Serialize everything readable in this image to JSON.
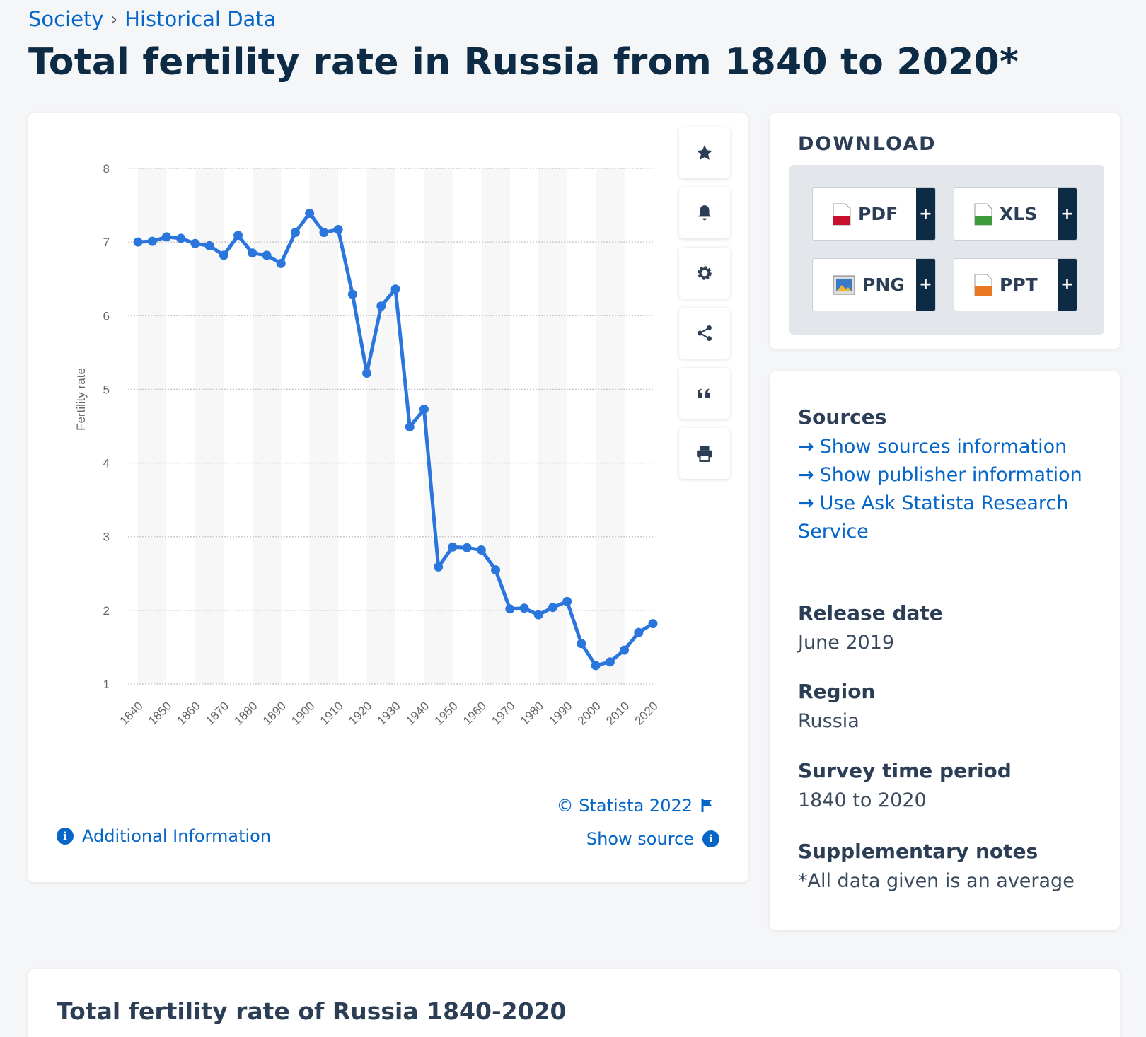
{
  "breadcrumb": {
    "items": [
      "Society",
      "Historical Data"
    ],
    "separator": "›"
  },
  "title": "Total fertility rate in Russia from 1840 to 2020*",
  "chart": {
    "copyright": "© Statista 2022",
    "additional_info": "Additional Information",
    "show_source": "Show source",
    "tools": [
      "star-icon",
      "bell-icon",
      "gear-icon",
      "share-icon",
      "quote-icon",
      "print-icon"
    ]
  },
  "chart_data": {
    "type": "line",
    "title": "",
    "xlabel": "",
    "ylabel": "Fertility rate",
    "ylim": [
      1,
      8
    ],
    "yticks": [
      1,
      2,
      3,
      4,
      5,
      6,
      7,
      8
    ],
    "xticks": [
      "1840",
      "1850",
      "1860",
      "1870",
      "1880",
      "1890",
      "1900",
      "1910",
      "1920",
      "1930",
      "1940",
      "1950",
      "1960",
      "1970",
      "1980",
      "1990",
      "2000",
      "2010",
      "2020"
    ],
    "grid": true,
    "color": "#2a76dd",
    "x": [
      1840,
      1845,
      1850,
      1855,
      1860,
      1865,
      1870,
      1875,
      1880,
      1885,
      1890,
      1895,
      1900,
      1905,
      1910,
      1915,
      1920,
      1925,
      1930,
      1935,
      1940,
      1945,
      1950,
      1955,
      1960,
      1965,
      1970,
      1975,
      1980,
      1985,
      1990,
      1995,
      2000,
      2005,
      2010,
      2015,
      2020
    ],
    "values": [
      7.0,
      7.01,
      7.07,
      7.05,
      6.98,
      6.95,
      6.82,
      7.09,
      6.85,
      6.82,
      6.71,
      7.13,
      7.39,
      7.13,
      7.17,
      6.29,
      5.22,
      6.13,
      6.36,
      4.49,
      4.73,
      2.59,
      2.86,
      2.85,
      2.82,
      2.55,
      2.02,
      2.03,
      1.94,
      2.04,
      2.12,
      1.55,
      1.25,
      1.3,
      1.46,
      1.7,
      1.82
    ]
  },
  "download": {
    "heading": "DOWNLOAD",
    "buttons": [
      {
        "label": "PDF",
        "icon": "pdf-file-icon",
        "color": "#c8102e"
      },
      {
        "label": "XLS",
        "icon": "xls-file-icon",
        "color": "#3c9b3c"
      },
      {
        "label": "PNG",
        "icon": "png-file-icon",
        "color": "#3a78c8"
      },
      {
        "label": "PPT",
        "icon": "ppt-file-icon",
        "color": "#e87722"
      }
    ],
    "plus": "+"
  },
  "info": {
    "sources_heading": "Sources",
    "source_links": [
      "Show sources information",
      "Show publisher information",
      "Use Ask Statista Research Service"
    ],
    "release_heading": "Release date",
    "release_value": "June 2019",
    "region_heading": "Region",
    "region_value": "Russia",
    "period_heading": "Survey time period",
    "period_value": "1840 to 2020",
    "notes_heading": "Supplementary notes",
    "notes_value": "*All data given is an average"
  },
  "bottom": {
    "title": "Total fertility rate of Russia 1840-2020"
  }
}
